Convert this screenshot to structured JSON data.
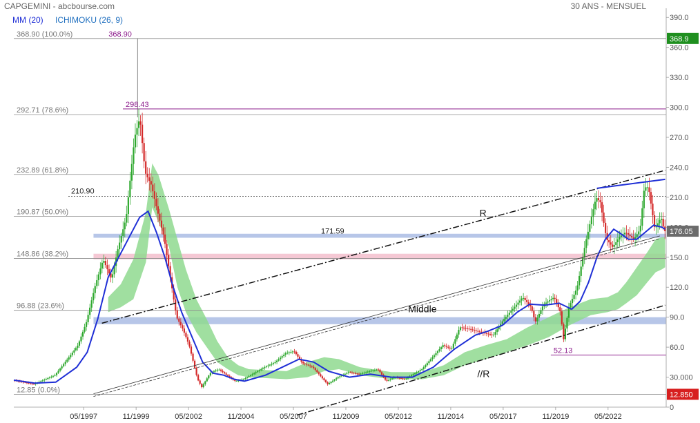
{
  "header": {
    "title": "CAPGEMINI - abcbourse.com",
    "period": "30 ANS - MENSUEL",
    "ma_label": "MM (20)",
    "ichimoku_label": "ICHIMOKU (26, 9)"
  },
  "colors": {
    "bull": "#2ea82e",
    "bear": "#d42a2a",
    "ma": "#1f2fd6",
    "cloud": "#8fd98f",
    "fib_text": "#777777",
    "purple": "#8b1a8b",
    "band_blue": "#9fb3e0",
    "band_pink": "#f2b6c6",
    "tag_green": "#1f8f1f",
    "tag_red": "#d71f1f",
    "tag_grey": "#6b6b6b"
  },
  "chart_data": {
    "type": "line",
    "title": "CAPGEMINI - abcbourse.com",
    "subtitle": "30 ANS - MENSUEL",
    "ylim": [
      0,
      395
    ],
    "xlim": [
      1994.0,
      2025.1
    ],
    "y_ticks": [
      0,
      30.0,
      60.0,
      90.0,
      120.0,
      150.0,
      180.0,
      210.0,
      240.0,
      270.0,
      300.0,
      330.0,
      360.0,
      390.0
    ],
    "y_tick_labels": [
      "0",
      "30.000",
      "60.0",
      "90.0",
      "120.0",
      "150.0",
      "180.0",
      "210.0",
      "240.0",
      "270.0",
      "300.0",
      "330.0",
      "360.0",
      "390.0"
    ],
    "x_ticks": [
      {
        "label": "05/1997",
        "x": 1997.33
      },
      {
        "label": "11/1999",
        "x": 1999.83
      },
      {
        "label": "05/2002",
        "x": 2002.33
      },
      {
        "label": "11/2004",
        "x": 2004.83
      },
      {
        "label": "05/2007",
        "x": 2007.33
      },
      {
        "label": "11/2009",
        "x": 2009.83
      },
      {
        "label": "05/2012",
        "x": 2012.33
      },
      {
        "label": "11/2014",
        "x": 2014.83
      },
      {
        "label": "05/2017",
        "x": 2017.33
      },
      {
        "label": "11/2019",
        "x": 2019.83
      },
      {
        "label": "05/2022",
        "x": 2022.33
      }
    ],
    "price_series": {
      "name": "CAPGEMINI",
      "points": [
        [
          1994.0,
          27
        ],
        [
          1995.0,
          23
        ],
        [
          1996.0,
          32
        ],
        [
          1996.6,
          48
        ],
        [
          1997.1,
          62
        ],
        [
          1997.5,
          85
        ],
        [
          1997.9,
          120
        ],
        [
          1998.3,
          148
        ],
        [
          1998.7,
          128
        ],
        [
          1999.0,
          158
        ],
        [
          1999.4,
          190
        ],
        [
          1999.8,
          270
        ],
        [
          2000.05,
          290
        ],
        [
          2000.3,
          235
        ],
        [
          2000.6,
          222
        ],
        [
          2000.9,
          195
        ],
        [
          2001.2,
          170
        ],
        [
          2001.5,
          130
        ],
        [
          2001.8,
          90
        ],
        [
          2002.1,
          78
        ],
        [
          2002.4,
          62
        ],
        [
          2002.8,
          28
        ],
        [
          2003.0,
          20
        ],
        [
          2003.4,
          34
        ],
        [
          2003.8,
          38
        ],
        [
          2004.2,
          32
        ],
        [
          2004.6,
          26
        ],
        [
          2005.0,
          28
        ],
        [
          2005.5,
          34
        ],
        [
          2006.0,
          40
        ],
        [
          2006.5,
          45
        ],
        [
          2007.0,
          54
        ],
        [
          2007.4,
          56
        ],
        [
          2007.8,
          44
        ],
        [
          2008.3,
          40
        ],
        [
          2008.7,
          30
        ],
        [
          2009.0,
          23
        ],
        [
          2009.5,
          30
        ],
        [
          2010.0,
          35
        ],
        [
          2010.5,
          33
        ],
        [
          2011.0,
          36
        ],
        [
          2011.4,
          38
        ],
        [
          2011.8,
          26
        ],
        [
          2012.2,
          30
        ],
        [
          2012.7,
          28
        ],
        [
          2013.0,
          32
        ],
        [
          2013.5,
          38
        ],
        [
          2014.0,
          50
        ],
        [
          2014.5,
          62
        ],
        [
          2014.9,
          58
        ],
        [
          2015.3,
          80
        ],
        [
          2015.8,
          78
        ],
        [
          2016.3,
          75
        ],
        [
          2016.9,
          72
        ],
        [
          2017.4,
          88
        ],
        [
          2017.9,
          100
        ],
        [
          2018.3,
          110
        ],
        [
          2018.7,
          100
        ],
        [
          2018.9,
          85
        ],
        [
          2019.3,
          103
        ],
        [
          2019.8,
          110
        ],
        [
          2020.1,
          95
        ],
        [
          2020.25,
          68
        ],
        [
          2020.5,
          100
        ],
        [
          2020.9,
          120
        ],
        [
          2021.3,
          165
        ],
        [
          2021.8,
          210
        ],
        [
          2022.0,
          205
        ],
        [
          2022.3,
          168
        ],
        [
          2022.6,
          160
        ],
        [
          2022.9,
          170
        ],
        [
          2023.2,
          175
        ],
        [
          2023.6,
          168
        ],
        [
          2023.9,
          178
        ],
        [
          2024.1,
          220
        ],
        [
          2024.3,
          220
        ],
        [
          2024.6,
          178
        ],
        [
          2024.9,
          190
        ],
        [
          2025.05,
          176.05
        ]
      ]
    },
    "moving_average": {
      "name": "MM (20)",
      "points": [
        [
          1994.0,
          27
        ],
        [
          1995.0,
          24
        ],
        [
          1996.0,
          25
        ],
        [
          1997.0,
          40
        ],
        [
          1997.5,
          55
        ],
        [
          1998.0,
          88
        ],
        [
          1998.5,
          130
        ],
        [
          1999.0,
          150
        ],
        [
          1999.5,
          170
        ],
        [
          2000.0,
          190
        ],
        [
          2000.4,
          196
        ],
        [
          2000.8,
          175
        ],
        [
          2001.2,
          150
        ],
        [
          2001.6,
          120
        ],
        [
          2002.0,
          95
        ],
        [
          2002.5,
          70
        ],
        [
          2003.0,
          45
        ],
        [
          2003.5,
          34
        ],
        [
          2004.0,
          32
        ],
        [
          2004.5,
          28
        ],
        [
          2005.0,
          26
        ],
        [
          2006.0,
          32
        ],
        [
          2007.0,
          42
        ],
        [
          2007.6,
          48
        ],
        [
          2008.3,
          45
        ],
        [
          2009.0,
          36
        ],
        [
          2010.0,
          30
        ],
        [
          2011.0,
          33
        ],
        [
          2012.0,
          30
        ],
        [
          2013.0,
          30
        ],
        [
          2014.0,
          40
        ],
        [
          2015.0,
          58
        ],
        [
          2016.0,
          72
        ],
        [
          2016.6,
          76
        ],
        [
          2017.3,
          82
        ],
        [
          2018.0,
          95
        ],
        [
          2018.6,
          103
        ],
        [
          2019.3,
          102
        ],
        [
          2020.0,
          104
        ],
        [
          2020.6,
          98
        ],
        [
          2021.0,
          106
        ],
        [
          2021.4,
          125
        ],
        [
          2021.8,
          150
        ],
        [
          2022.2,
          168
        ],
        [
          2022.6,
          178
        ],
        [
          2022.9,
          174
        ],
        [
          2023.3,
          168
        ],
        [
          2023.7,
          168
        ],
        [
          2024.1,
          175
        ],
        [
          2024.5,
          182
        ],
        [
          2024.9,
          180
        ],
        [
          2025.05,
          178
        ]
      ]
    },
    "ichimoku_cloud": {
      "name": "ICHIMOKU (26, 9)",
      "upper": [
        [
          1998.5,
          110
        ],
        [
          1999.1,
          123
        ],
        [
          1999.7,
          148
        ],
        [
          2000.3,
          195
        ],
        [
          2000.6,
          244
        ],
        [
          2000.9,
          232
        ],
        [
          2001.4,
          198
        ],
        [
          2001.8,
          168
        ],
        [
          2002.2,
          138
        ],
        [
          2002.7,
          108
        ],
        [
          2003.2,
          88
        ],
        [
          2003.7,
          66
        ],
        [
          2004.2,
          50
        ],
        [
          2004.7,
          42
        ],
        [
          2005.2,
          38
        ],
        [
          2007.0,
          36
        ],
        [
          2008.0,
          45
        ],
        [
          2008.8,
          50
        ],
        [
          2009.5,
          48
        ],
        [
          2010.5,
          40
        ],
        [
          2012.0,
          35
        ],
        [
          2013.5,
          35
        ],
        [
          2014.5,
          42
        ],
        [
          2015.5,
          55
        ],
        [
          2016.5,
          62
        ],
        [
          2017.5,
          68
        ],
        [
          2018.5,
          80
        ],
        [
          2019.5,
          90
        ],
        [
          2020.5,
          100
        ],
        [
          2021.5,
          108
        ],
        [
          2022.3,
          110
        ],
        [
          2022.8,
          115
        ],
        [
          2023.2,
          125
        ],
        [
          2023.7,
          140
        ],
        [
          2024.2,
          155
        ],
        [
          2024.6,
          168
        ],
        [
          2024.9,
          170
        ],
        [
          2025.05,
          170
        ]
      ],
      "lower": [
        [
          1998.5,
          95
        ],
        [
          1999.1,
          100
        ],
        [
          1999.7,
          108
        ],
        [
          2000.3,
          145
        ],
        [
          2000.6,
          200
        ],
        [
          2000.9,
          185
        ],
        [
          2001.4,
          160
        ],
        [
          2001.8,
          120
        ],
        [
          2002.2,
          95
        ],
        [
          2002.7,
          75
        ],
        [
          2003.2,
          60
        ],
        [
          2003.7,
          45
        ],
        [
          2004.2,
          38
        ],
        [
          2004.7,
          32
        ],
        [
          2005.2,
          30
        ],
        [
          2007.0,
          28
        ],
        [
          2008.0,
          30
        ],
        [
          2008.8,
          36
        ],
        [
          2009.5,
          38
        ],
        [
          2010.5,
          32
        ],
        [
          2012.0,
          28
        ],
        [
          2013.5,
          28
        ],
        [
          2014.5,
          32
        ],
        [
          2015.5,
          42
        ],
        [
          2016.5,
          48
        ],
        [
          2017.5,
          55
        ],
        [
          2018.5,
          62
        ],
        [
          2019.5,
          70
        ],
        [
          2020.5,
          82
        ],
        [
          2021.5,
          92
        ],
        [
          2022.3,
          95
        ],
        [
          2022.8,
          98
        ],
        [
          2023.2,
          104
        ],
        [
          2023.7,
          112
        ],
        [
          2024.2,
          125
        ],
        [
          2024.6,
          135
        ],
        [
          2024.9,
          138
        ],
        [
          2025.05,
          140
        ]
      ]
    },
    "fibonacci_levels": [
      {
        "label": "368.90  (100.0%)",
        "value": 368.9
      },
      {
        "label": "292.71  (78.6%)",
        "value": 292.71
      },
      {
        "label": "232.89  (61.8%)",
        "value": 232.89
      },
      {
        "label": "190.87  (50.0%)",
        "value": 190.87
      },
      {
        "label": "148.86  (38.2%)",
        "value": 148.86
      },
      {
        "label": "96.88  (23.6%)",
        "value": 96.88
      },
      {
        "label": "12.85  (0.0%)",
        "value": 12.85
      }
    ],
    "price_levels": [
      {
        "label": "368.90",
        "value": 368.9,
        "x_from": 1999.9,
        "x_to": 1999.9
      },
      {
        "label": "298.43",
        "value": 298.43,
        "x_from": 1999.2,
        "x_to": 2025.1
      },
      {
        "label": "210.90",
        "value": 210.9,
        "x_from": 1996.6,
        "x_to": 2025.1
      },
      {
        "label": "171.59",
        "value": 171.59,
        "x_from": 1997.9,
        "x_to": 2025.1
      },
      {
        "label": "52.13",
        "value": 52.13,
        "x_from": 2019.6,
        "x_to": 2025.1
      }
    ],
    "support_bands": [
      {
        "y_from": 169.5,
        "y_to": 173.5,
        "color": "band_blue"
      },
      {
        "y_from": 148.0,
        "y_to": 153.5,
        "color": "band_pink"
      },
      {
        "y_from": 83.0,
        "y_to": 90.0,
        "color": "band_blue"
      }
    ],
    "trend_lines": [
      {
        "label": "R",
        "from": [
          1998.2,
          84
        ],
        "to": [
          2025.05,
          237
        ],
        "style": "dashdot"
      },
      {
        "label": "Middle",
        "from": [
          1997.8,
          12
        ],
        "to": [
          2024.8,
          170
        ],
        "style": "double"
      },
      {
        "label": "//R",
        "from": [
          2007.5,
          -8
        ],
        "to": [
          2025.05,
          102
        ],
        "style": "dashdot"
      },
      {
        "label": "",
        "from": [
          2021.8,
          219
        ],
        "to": [
          2025.05,
          228
        ],
        "style": "solid"
      }
    ],
    "trend_labels": [
      {
        "label": "R",
        "x": 2016.2,
        "y": 191
      },
      {
        "label": "Middle",
        "x": 2012.8,
        "y": 95
      },
      {
        "label": "//R",
        "x": 2016.1,
        "y": 30
      }
    ],
    "price_tags": [
      {
        "label": "368.9",
        "value": 368.9,
        "color": "tag_green"
      },
      {
        "label": "176.05",
        "value": 176.05,
        "color": "tag_grey"
      },
      {
        "label": "12.850",
        "value": 12.85,
        "color": "tag_red"
      }
    ]
  }
}
